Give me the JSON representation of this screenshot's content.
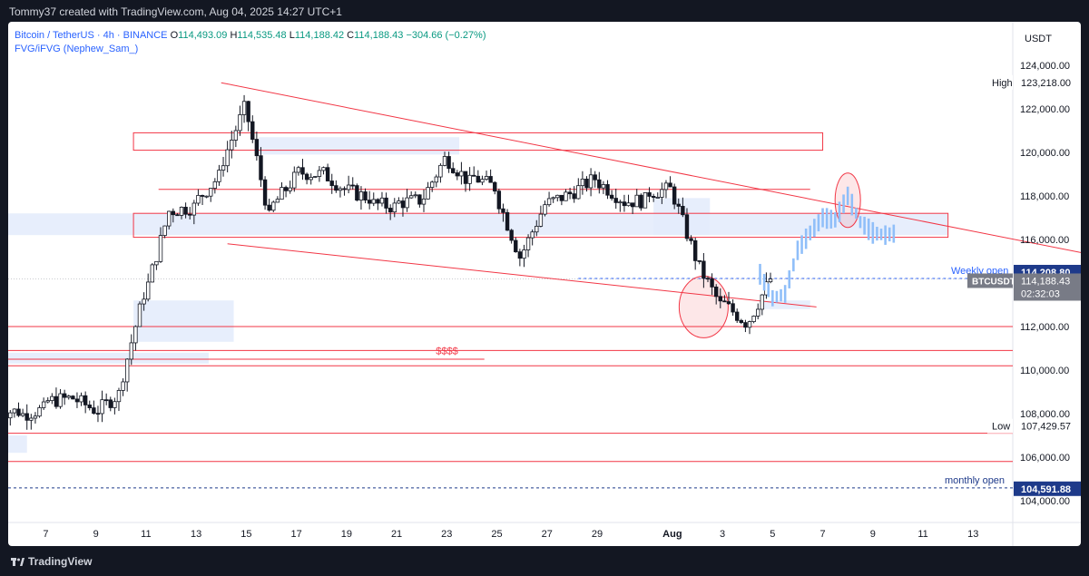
{
  "header": {
    "title": "Tommy37 created with TradingView.com, Aug 04, 2025 14:27 UTC+1"
  },
  "legend": {
    "symbol": "Bitcoin / TetherUS · 4h · BINANCE",
    "open_label": "O",
    "open": "114,493.09",
    "high_label": "H",
    "high": "114,535.48",
    "low_label": "L",
    "low": "114,188.42",
    "close_label": "C",
    "close": "114,188.43",
    "change": "−304.66 (−0.27%)",
    "indicator": "FVG/iFVG (Nephew_Sam_)"
  },
  "footer": {
    "brand": "TradingView"
  },
  "chart_data": {
    "type": "candlestick",
    "currency": "USDT",
    "ylim": [
      103000,
      126000
    ],
    "y_ticks": [
      {
        "value": 104000,
        "label": "104,000.00"
      },
      {
        "value": 106000,
        "label": "106,000.00"
      },
      {
        "value": 108000,
        "label": "108,000.00"
      },
      {
        "value": 110000,
        "label": "110,000.00"
      },
      {
        "value": 112000,
        "label": "112,000.00"
      },
      {
        "value": 114000,
        "label": "114,000.00"
      },
      {
        "value": 116000,
        "label": "116,000.00"
      },
      {
        "value": 118000,
        "label": "118,000.00"
      },
      {
        "value": 120000,
        "label": "120,000.00"
      },
      {
        "value": 122000,
        "label": "122,000.00"
      },
      {
        "value": 124000,
        "label": "124,000.00"
      }
    ],
    "x_range_days": [
      "2025-07-05T12:00",
      "2025-08-14T14:00"
    ],
    "x_ticks": [
      {
        "label": "7",
        "date": "2025-07-07"
      },
      {
        "label": "9",
        "date": "2025-07-09"
      },
      {
        "label": "11",
        "date": "2025-07-11"
      },
      {
        "label": "13",
        "date": "2025-07-13"
      },
      {
        "label": "15",
        "date": "2025-07-15"
      },
      {
        "label": "17",
        "date": "2025-07-17"
      },
      {
        "label": "19",
        "date": "2025-07-19"
      },
      {
        "label": "21",
        "date": "2025-07-21"
      },
      {
        "label": "23",
        "date": "2025-07-23"
      },
      {
        "label": "25",
        "date": "2025-07-25"
      },
      {
        "label": "27",
        "date": "2025-07-27"
      },
      {
        "label": "29",
        "date": "2025-07-29"
      },
      {
        "label": "Aug",
        "date": "2025-08-01"
      },
      {
        "label": "3",
        "date": "2025-08-03"
      },
      {
        "label": "5",
        "date": "2025-08-05"
      },
      {
        "label": "7",
        "date": "2025-08-07"
      },
      {
        "label": "9",
        "date": "2025-08-09"
      },
      {
        "label": "11",
        "date": "2025-08-11"
      },
      {
        "label": "13",
        "date": "2025-08-13"
      }
    ],
    "candles_daily_path": [
      {
        "date": "2025-07-05",
        "close": 108100
      },
      {
        "date": "2025-07-06",
        "close": 108200
      },
      {
        "date": "2025-07-07",
        "close": 108700
      },
      {
        "date": "2025-07-08",
        "close": 108200
      },
      {
        "date": "2025-07-09",
        "close": 108900
      },
      {
        "date": "2025-07-10",
        "close": 113500
      },
      {
        "date": "2025-07-11",
        "close": 117300
      },
      {
        "date": "2025-07-12",
        "close": 117500
      },
      {
        "date": "2025-07-13",
        "close": 118900
      },
      {
        "date": "2025-07-14",
        "close": 122000
      },
      {
        "date": "2025-07-15",
        "close": 117000
      },
      {
        "date": "2025-07-16",
        "close": 118800
      },
      {
        "date": "2025-07-17",
        "close": 119000
      },
      {
        "date": "2025-07-18",
        "close": 118300
      },
      {
        "date": "2025-07-19",
        "close": 117900
      },
      {
        "date": "2025-07-20",
        "close": 117500
      },
      {
        "date": "2025-07-21",
        "close": 117800
      },
      {
        "date": "2025-07-22",
        "close": 119700
      },
      {
        "date": "2025-07-23",
        "close": 118600
      },
      {
        "date": "2025-07-24",
        "close": 118400
      },
      {
        "date": "2025-07-25",
        "close": 115200
      },
      {
        "date": "2025-07-26",
        "close": 117600
      },
      {
        "date": "2025-07-27",
        "close": 118100
      },
      {
        "date": "2025-07-28",
        "close": 118800
      },
      {
        "date": "2025-07-29",
        "close": 117900
      },
      {
        "date": "2025-07-30",
        "close": 117800
      },
      {
        "date": "2025-07-31",
        "close": 118300
      },
      {
        "date": "2025-08-01",
        "close": 115200
      },
      {
        "date": "2025-08-02",
        "close": 113000
      },
      {
        "date": "2025-08-03",
        "close": 112200
      },
      {
        "date": "2025-08-04",
        "close": 114188
      }
    ],
    "projection_path": [
      {
        "date": "2025-08-04T12:00",
        "value": 114400
      },
      {
        "date": "2025-08-05",
        "value": 113300
      },
      {
        "date": "2025-08-05T12:00",
        "value": 113500
      },
      {
        "date": "2025-08-06",
        "value": 115500
      },
      {
        "date": "2025-08-06T12:00",
        "value": 116300
      },
      {
        "date": "2025-08-07",
        "value": 117000
      },
      {
        "date": "2025-08-07T12:00",
        "value": 116900
      },
      {
        "date": "2025-08-08",
        "value": 118000
      },
      {
        "date": "2025-08-08T12:00",
        "value": 116800
      },
      {
        "date": "2025-08-09",
        "value": 116300
      },
      {
        "date": "2025-08-09T12:00",
        "value": 116200
      },
      {
        "date": "2025-08-10",
        "value": 116300
      }
    ],
    "price_labels": [
      {
        "text": "High",
        "value": "123,218.00",
        "y": 123218
      },
      {
        "text": "Low",
        "value": "107,429.57",
        "y": 107429.57
      },
      {
        "text": "Weekly open",
        "value": "114,208.80",
        "y": 114208.8
      },
      {
        "text": "BTCUSDT",
        "value": "114,188.43",
        "y": 114188.43,
        "countdown": "02:32:03"
      },
      {
        "text": "monthly open",
        "value": "104,591.88",
        "y": 104591.88
      }
    ],
    "annotations": [
      {
        "text": "$$$$",
        "date": "2025-07-23",
        "y": 110900
      }
    ],
    "colors": {
      "up": "#089981",
      "down": "#f23645",
      "trend": "#f23645",
      "fvg": "#e3ebfb",
      "projection": "#90bff9",
      "weekly_open": "#2962ff",
      "monthly_open": "#1e3a8a"
    }
  }
}
